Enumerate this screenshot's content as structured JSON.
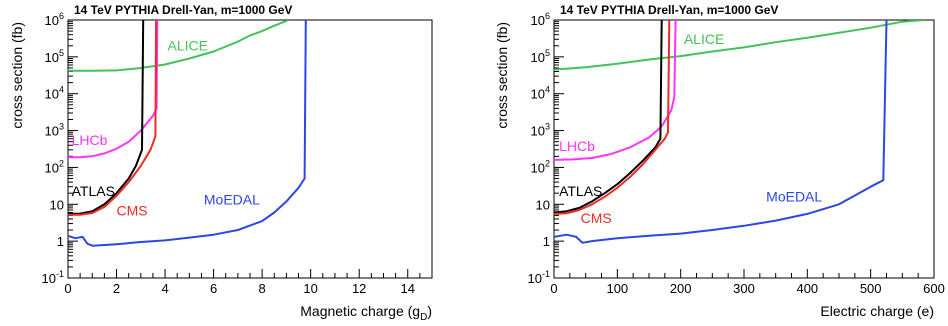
{
  "chart_data": [
    {
      "type": "line",
      "title": "14 TeV PYTHIA Drell-Yan, m=1000 GeV",
      "xlabel": "Magnetic charge (g",
      "xlabel_sub": "D",
      "xlabel_end": ")",
      "ylabel": "cross section (fb)",
      "xlim": [
        0,
        15
      ],
      "ylim": [
        0.1,
        1000000
      ],
      "yscale": "log",
      "xticks": [
        0,
        2,
        4,
        6,
        8,
        10,
        12,
        14
      ],
      "yticks": [
        {
          "v": 0.1,
          "base": "10",
          "exp": "-1"
        },
        {
          "v": 1,
          "base": "1",
          "exp": ""
        },
        {
          "v": 10,
          "base": "10",
          "exp": ""
        },
        {
          "v": 100,
          "base": "10",
          "exp": "2"
        },
        {
          "v": 1000,
          "base": "10",
          "exp": "3"
        },
        {
          "v": 10000,
          "base": "10",
          "exp": "4"
        },
        {
          "v": 100000,
          "base": "10",
          "exp": "5"
        },
        {
          "v": 1000000,
          "base": "10",
          "exp": "6"
        }
      ],
      "series": [
        {
          "name": "ALICE",
          "color": "#44c25a",
          "label_x": 4.1,
          "label_y": 150000,
          "x": [
            0,
            1,
            2,
            3,
            4,
            5,
            6,
            7,
            7.5,
            8,
            8.5,
            9.1
          ],
          "y": [
            42000,
            42000,
            43000,
            50000,
            62000,
            90000,
            140000,
            260000,
            380000,
            500000,
            700000,
            1000000
          ]
        },
        {
          "name": "LHCb",
          "color": "#ff33ff",
          "label_x": 0.15,
          "label_y": 400,
          "x": [
            0,
            0.5,
            1,
            1.5,
            2,
            2.5,
            3,
            3.5,
            3.65,
            3.68
          ],
          "y": [
            190,
            190,
            200,
            240,
            320,
            500,
            1000,
            2500,
            4000,
            1000000
          ]
        },
        {
          "name": "ATLAS",
          "color": "#000000",
          "label_x": 0.15,
          "label_y": 17,
          "x": [
            0,
            0.5,
            1,
            1.5,
            2,
            2.5,
            2.8,
            3.05,
            3.1
          ],
          "y": [
            5.5,
            5.6,
            6.5,
            10,
            20,
            50,
            110,
            300,
            1000000
          ]
        },
        {
          "name": "CMS",
          "color": "#ee2b24",
          "label_x": 2.0,
          "label_y": 5,
          "x": [
            0,
            0.5,
            1,
            1.5,
            2,
            2.5,
            3,
            3.4,
            3.6,
            3.63
          ],
          "y": [
            5.2,
            5.2,
            5.8,
            8.5,
            17,
            40,
            110,
            300,
            700,
            1000000
          ]
        },
        {
          "name": "MoEDAL",
          "color": "#2c46e8",
          "label_x": 5.6,
          "label_y": 10,
          "x": [
            0,
            0.3,
            0.6,
            0.8,
            1.0,
            2,
            3,
            4,
            5,
            6,
            7,
            8,
            8.5,
            9,
            9.5,
            9.75,
            9.8
          ],
          "y": [
            1.4,
            1.2,
            1.3,
            0.85,
            0.75,
            0.82,
            0.95,
            1.05,
            1.25,
            1.5,
            2,
            3.5,
            6,
            12,
            28,
            50,
            1000000
          ]
        }
      ]
    },
    {
      "type": "line",
      "title": "14 TeV PYTHIA Drell-Yan, m=1000 GeV",
      "xlabel": "Electric charge (e)",
      "xlabel_sub": "",
      "xlabel_end": "",
      "ylabel": "cross section (fb)",
      "xlim": [
        0,
        600
      ],
      "ylim": [
        0.1,
        1000000
      ],
      "yscale": "log",
      "xticks": [
        0,
        100,
        200,
        300,
        400,
        500,
        600
      ],
      "yticks": [
        {
          "v": 0.1,
          "base": "10",
          "exp": "-1"
        },
        {
          "v": 1,
          "base": "1",
          "exp": ""
        },
        {
          "v": 10,
          "base": "10",
          "exp": ""
        },
        {
          "v": 100,
          "base": "10",
          "exp": "2"
        },
        {
          "v": 1000,
          "base": "10",
          "exp": "3"
        },
        {
          "v": 10000,
          "base": "10",
          "exp": "4"
        },
        {
          "v": 100000,
          "base": "10",
          "exp": "5"
        },
        {
          "v": 1000000,
          "base": "10",
          "exp": "6"
        }
      ],
      "series": [
        {
          "name": "ALICE",
          "color": "#44c25a",
          "label_x": 205,
          "label_y": 220000,
          "x": [
            0,
            50,
            100,
            150,
            200,
            250,
            300,
            350,
            400,
            450,
            500,
            550,
            585
          ],
          "y": [
            45000,
            52000,
            65000,
            85000,
            105000,
            140000,
            180000,
            250000,
            330000,
            450000,
            620000,
            900000,
            1000000
          ]
        },
        {
          "name": "LHCb",
          "color": "#ff33ff",
          "label_x": 8,
          "label_y": 280,
          "x": [
            0,
            30,
            60,
            90,
            120,
            150,
            170,
            185,
            190,
            192
          ],
          "y": [
            160,
            165,
            180,
            230,
            350,
            650,
            1300,
            3500,
            8000,
            1000000
          ]
        },
        {
          "name": "ATLAS",
          "color": "#000000",
          "label_x": 8,
          "label_y": 17,
          "x": [
            0,
            20,
            40,
            60,
            80,
            100,
            120,
            140,
            160,
            168,
            170
          ],
          "y": [
            6,
            6.5,
            8,
            12,
            20,
            35,
            70,
            150,
            350,
            600,
            1000000
          ]
        },
        {
          "name": "CMS",
          "color": "#ee2b24",
          "label_x": 42,
          "label_y": 3.1,
          "x": [
            0,
            20,
            40,
            60,
            80,
            100,
            120,
            140,
            160,
            175,
            180,
            182
          ],
          "y": [
            5.5,
            5.7,
            7,
            10,
            16,
            28,
            55,
            120,
            300,
            600,
            900,
            1000000
          ]
        },
        {
          "name": "MoEDAL",
          "color": "#2c46e8",
          "label_x": 335,
          "label_y": 12,
          "x": [
            0,
            20,
            35,
            45,
            60,
            100,
            150,
            200,
            250,
            300,
            350,
            400,
            450,
            500,
            520,
            525
          ],
          "y": [
            1.3,
            1.5,
            1.3,
            0.9,
            1.0,
            1.2,
            1.4,
            1.6,
            2,
            2.6,
            3.6,
            5.5,
            10,
            30,
            45,
            1000000
          ]
        }
      ]
    }
  ]
}
